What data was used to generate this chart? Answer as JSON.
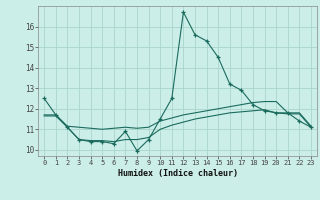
{
  "title": "",
  "xlabel": "Humidex (Indice chaleur)",
  "background_color": "#cceee8",
  "grid_color": "#aad4cc",
  "line_color": "#1a6b5e",
  "xlim": [
    -0.5,
    23.5
  ],
  "ylim": [
    9.7,
    17.0
  ],
  "yticks": [
    10,
    11,
    12,
    13,
    14,
    15,
    16
  ],
  "xticks": [
    0,
    1,
    2,
    3,
    4,
    5,
    6,
    7,
    8,
    9,
    10,
    11,
    12,
    13,
    14,
    15,
    16,
    17,
    18,
    19,
    20,
    21,
    22,
    23
  ],
  "series": [
    {
      "x": [
        0,
        1,
        2,
        3,
        4,
        5,
        6,
        7,
        8,
        9,
        10,
        11,
        12,
        13,
        14,
        15,
        16,
        17,
        18,
        19,
        20,
        21,
        22,
        23
      ],
      "y": [
        12.5,
        11.7,
        11.1,
        10.5,
        10.4,
        10.4,
        10.3,
        10.9,
        9.95,
        10.5,
        11.5,
        12.5,
        16.7,
        15.6,
        15.3,
        14.5,
        13.2,
        12.9,
        12.2,
        11.9,
        11.8,
        11.8,
        11.4,
        11.1
      ],
      "marker": "+"
    },
    {
      "x": [
        0,
        1,
        2,
        3,
        4,
        5,
        6,
        7,
        8,
        9,
        10,
        11,
        12,
        13,
        14,
        15,
        16,
        17,
        18,
        19,
        20,
        21,
        22,
        23
      ],
      "y": [
        11.7,
        11.7,
        11.15,
        11.1,
        11.05,
        11.0,
        11.05,
        11.1,
        11.05,
        11.1,
        11.4,
        11.55,
        11.7,
        11.8,
        11.9,
        12.0,
        12.1,
        12.2,
        12.3,
        12.35,
        12.35,
        11.8,
        11.8,
        11.15
      ],
      "marker": null
    },
    {
      "x": [
        0,
        1,
        2,
        3,
        4,
        5,
        6,
        7,
        8,
        9,
        10,
        11,
        12,
        13,
        14,
        15,
        16,
        17,
        18,
        19,
        20,
        21,
        22,
        23
      ],
      "y": [
        11.65,
        11.65,
        11.1,
        10.5,
        10.45,
        10.45,
        10.4,
        10.5,
        10.5,
        10.6,
        11.0,
        11.2,
        11.35,
        11.5,
        11.6,
        11.7,
        11.8,
        11.85,
        11.9,
        11.95,
        11.8,
        11.75,
        11.75,
        11.1
      ],
      "marker": null
    }
  ]
}
